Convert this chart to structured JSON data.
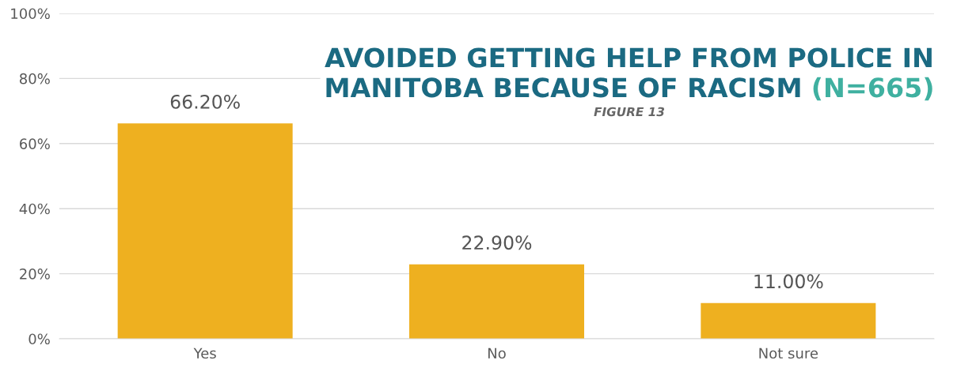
{
  "chart_data": {
    "type": "bar",
    "title": "AVOIDED GETTING HELP FROM POLICE IN\nMANITOBA BECAUSE OF RACISM",
    "subtitle": "(N=665)",
    "annotations": [
      "FIGURE 13"
    ],
    "categories": [
      "Yes",
      "No",
      "Not sure"
    ],
    "values": [
      66.2,
      22.9,
      11.0
    ],
    "value_labels": [
      "66.20%",
      "22.90%",
      "11.00%"
    ],
    "color": "#eeb020",
    "ylim": [
      0,
      100
    ],
    "yticks": [
      {
        "value": 0,
        "label": "0%"
      },
      {
        "value": 20,
        "label": "20%"
      },
      {
        "value": 40,
        "label": "40%"
      },
      {
        "value": 60,
        "label": "60%"
      },
      {
        "value": 80,
        "label": "80%"
      },
      {
        "value": 100,
        "label": "100%"
      }
    ],
    "grid": "y"
  }
}
